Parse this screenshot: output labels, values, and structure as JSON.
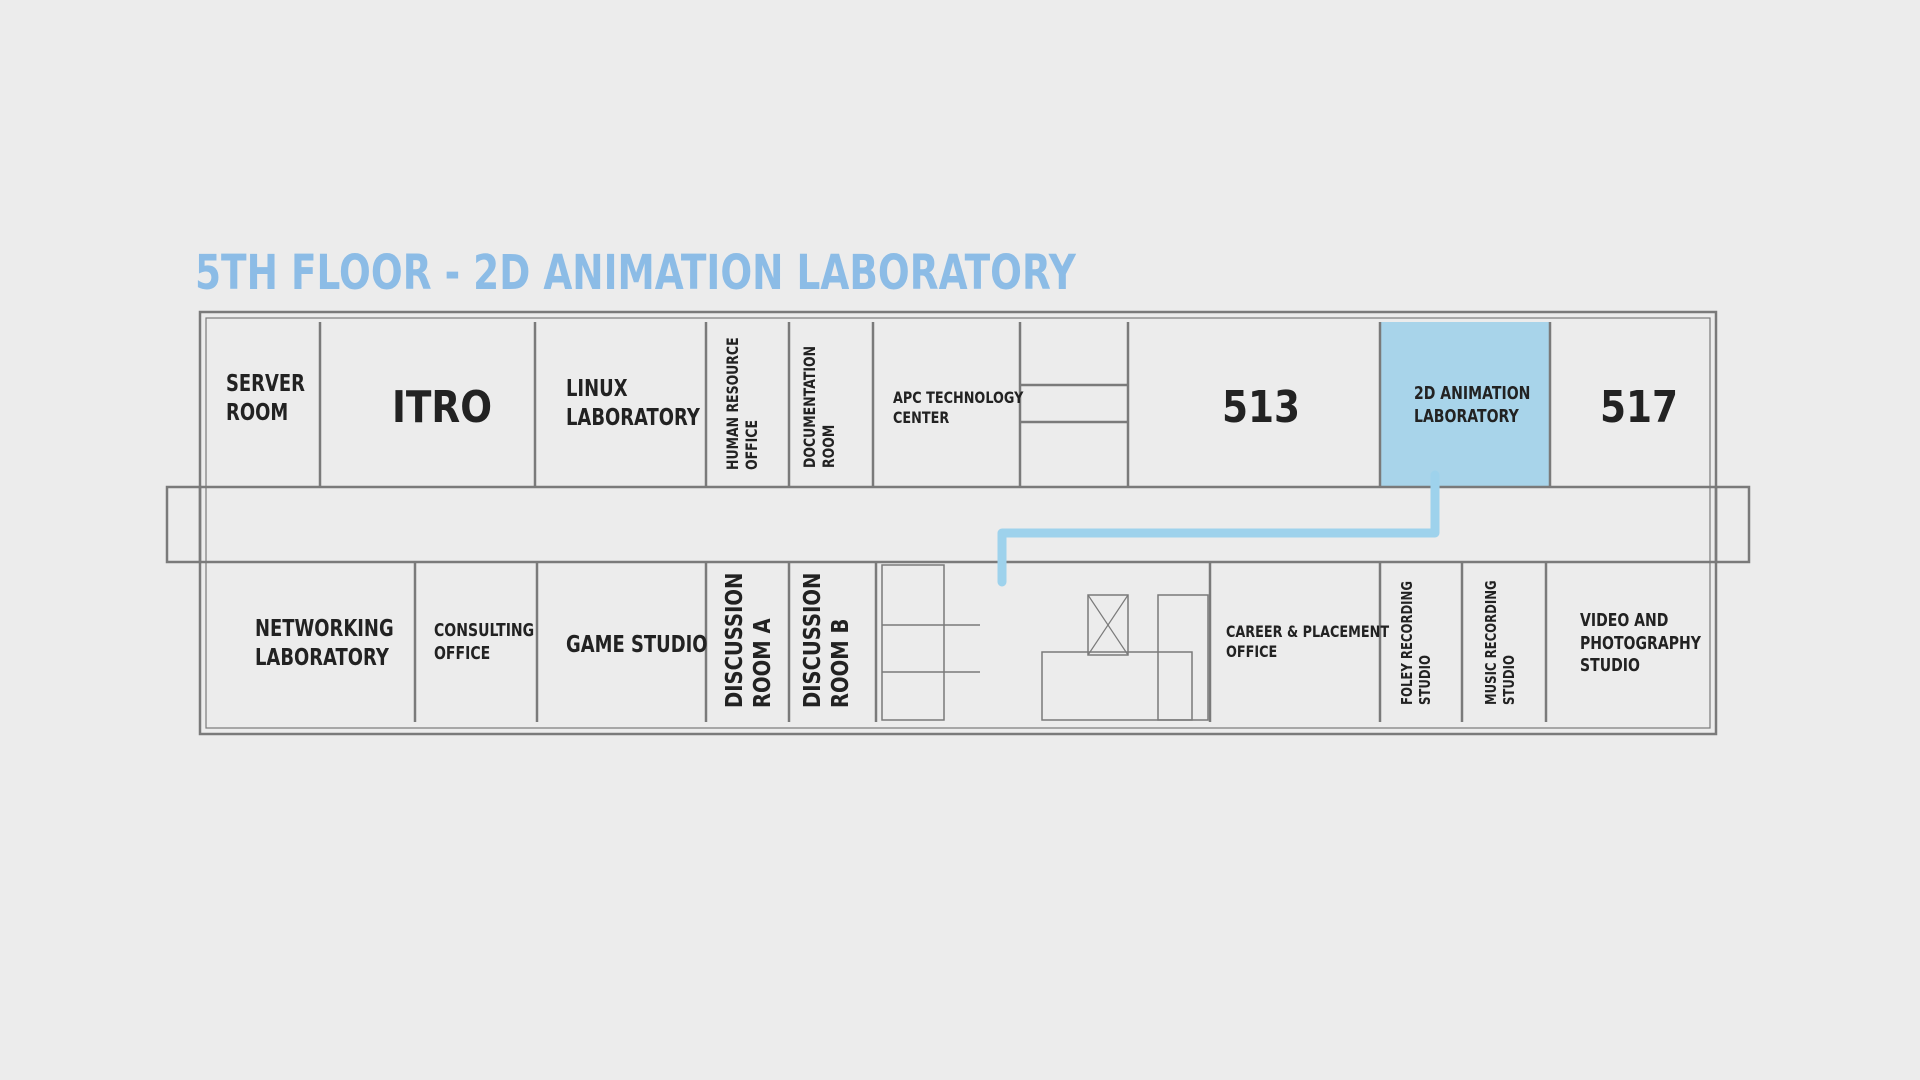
{
  "title": "5TH FLOOR - 2D ANIMATION LABORATORY",
  "colors": {
    "title": "#8cbce6",
    "highlight": "#a8d4ea",
    "route": "#9ed2ec",
    "wall": "#7a7a7a",
    "background": "#ececec"
  },
  "rooms": {
    "server_room": [
      "SERVER",
      "ROOM"
    ],
    "itro": "ITRO",
    "linux_lab": [
      "LINUX",
      "LABORATORY"
    ],
    "hr_office": [
      "HUMAN RESOURCE",
      "OFFICE"
    ],
    "documentation": [
      "DOCUMENTATION",
      "ROOM"
    ],
    "apc_center": [
      "APC TECHNOLOGY",
      "CENTER"
    ],
    "room_513": "513",
    "animation_lab": [
      "2D ANIMATION",
      "LABORATORY"
    ],
    "room_517": "517",
    "networking_lab": [
      "NETWORKING",
      "LABORATORY"
    ],
    "consulting": [
      "CONSULTING",
      "OFFICE"
    ],
    "game_studio": "GAME STUDIO",
    "discussion_a": [
      "DISCUSSION",
      "ROOM A"
    ],
    "discussion_b": [
      "DISCUSSION",
      "ROOM B"
    ],
    "career": [
      "CAREER & PLACEMENT",
      "OFFICE"
    ],
    "foley": [
      "FOLEY RECORDING",
      "STUDIO"
    ],
    "music": [
      "MUSIC RECORDING",
      "STUDIO"
    ],
    "video": [
      "VIDEO AND",
      "PHOTOGRAPHY",
      "STUDIO"
    ]
  }
}
